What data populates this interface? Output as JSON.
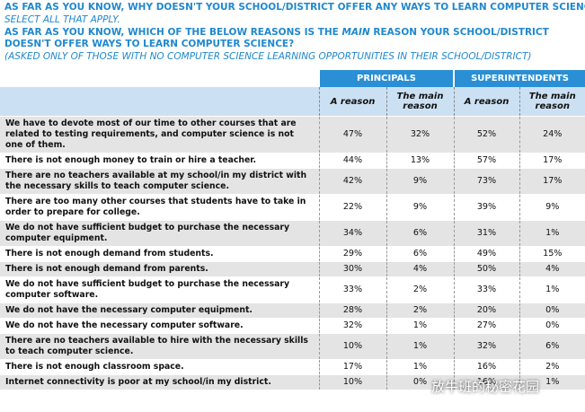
{
  "header": {
    "question1": "AS FAR AS YOU KNOW, WHY DOESN'T YOUR SCHOOL/DISTRICT OFFER ANY WAYS TO LEARN COMPUTER SCIENCE?",
    "note1": "SELECT ALL THAT APPLY.",
    "question2_before": "AS FAR AS YOU KNOW, WHICH OF THE BELOW REASONS IS THE",
    "question2_emphasis": "MAIN",
    "question2_after": "REASON YOUR SCHOOL/DISTRICT DOESN'T OFFER WAYS TO LEARN COMPUTER SCIENCE?",
    "note2": "(ASKED ONLY OF THOSE WITH NO COMPUTER SCIENCE LEARNING OPPORTUNITIES IN THEIR SCHOOL/DISTRICT)"
  },
  "table": {
    "groups": [
      "PRINCIPALS",
      "SUPERINTENDENTS"
    ],
    "columns": [
      "A reason",
      "The main reason",
      "A reason",
      "The main reason"
    ],
    "rows": [
      [
        "We have to devote most of our time to other courses that are related to testing requirements, and computer science is not one of them.",
        "47%",
        "32%",
        "52%",
        "24%"
      ],
      [
        "There is not enough money to train or hire a teacher.",
        "44%",
        "13%",
        "57%",
        "17%"
      ],
      [
        "There are no teachers available at my school/in my district with the necessary skills to teach computer science.",
        "42%",
        "9%",
        "73%",
        "17%"
      ],
      [
        "There are too many other courses that students have to take in order to prepare for college.",
        "22%",
        "9%",
        "39%",
        "9%"
      ],
      [
        "We do not have sufficient budget to purchase the necessary computer equipment.",
        "34%",
        "6%",
        "31%",
        "1%"
      ],
      [
        "There is not enough demand from students.",
        "29%",
        "6%",
        "49%",
        "15%"
      ],
      [
        "There is not enough demand from parents.",
        "30%",
        "4%",
        "50%",
        "4%"
      ],
      [
        "We do not have sufficient budget to purchase the necessary computer software.",
        "33%",
        "2%",
        "33%",
        "1%"
      ],
      [
        "We do not have the necessary computer equipment.",
        "28%",
        "2%",
        "20%",
        "0%"
      ],
      [
        "We do not have the necessary computer software.",
        "32%",
        "1%",
        "27%",
        "0%"
      ],
      [
        "There are no teachers available to hire with the necessary skills to teach computer science.",
        "10%",
        "1%",
        "32%",
        "6%"
      ],
      [
        "There is not enough classroom space.",
        "17%",
        "1%",
        "16%",
        "2%"
      ],
      [
        "Internet connectivity is poor at my school/in my district.",
        "10%",
        "0%",
        "16%",
        "1%"
      ]
    ]
  },
  "watermark": "放牛班的秘密花园"
}
